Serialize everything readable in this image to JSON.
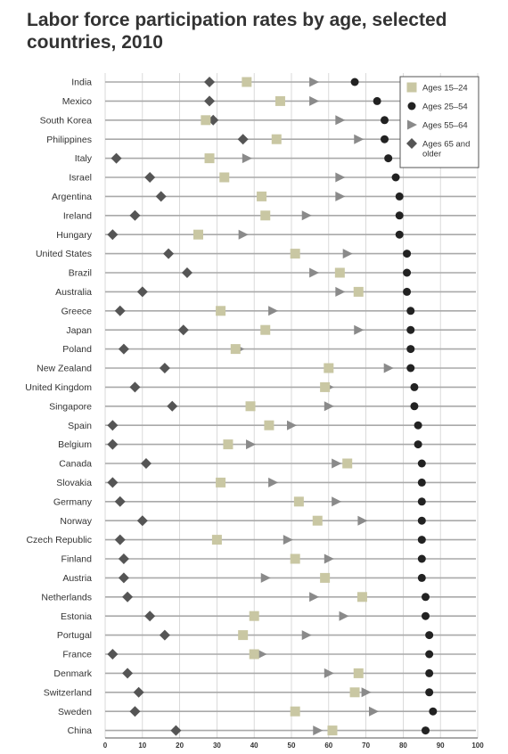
{
  "chart_data": {
    "type": "scatter",
    "title": "Labor force participation rates by age, selected countries, 2010",
    "xlabel": "",
    "ylabel": "",
    "xlim": [
      0,
      100
    ],
    "x_ticks": [
      0,
      10,
      20,
      30,
      40,
      50,
      60,
      70,
      80,
      90,
      100
    ],
    "grid": true,
    "legend_position": "top-right",
    "colors": {
      "Ages 15–24": "#c9c7a3",
      "Ages 25–54": "#222222",
      "Ages 55–64": "#8a8a8a",
      "Ages 65 and older": "#555555"
    },
    "marker_shapes": {
      "Ages 15–24": "square",
      "Ages 25–54": "circle",
      "Ages 55–64": "triangle",
      "Ages 65 and older": "diamond"
    },
    "categories": [
      "India",
      "Mexico",
      "South Korea",
      "Philippines",
      "Italy",
      "Israel",
      "Argentina",
      "Ireland",
      "Hungary",
      "United States",
      "Brazil",
      "Australia",
      "Greece",
      "Japan",
      "Poland",
      "New Zealand",
      "United Kingdom",
      "Singapore",
      "Spain",
      "Belgium",
      "Canada",
      "Slovakia",
      "Germany",
      "Norway",
      "Czech Republic",
      "Finland",
      "Austria",
      "Netherlands",
      "Estonia",
      "Portugal",
      "France",
      "Denmark",
      "Switzerland",
      "Sweden",
      "China"
    ],
    "series": [
      {
        "name": "Ages 15–24",
        "values": [
          38,
          47,
          27,
          46,
          28,
          32,
          42,
          43,
          25,
          51,
          63,
          68,
          31,
          43,
          35,
          60,
          59,
          39,
          44,
          33,
          65,
          31,
          52,
          57,
          30,
          51,
          59,
          69,
          40,
          37,
          40,
          68,
          67,
          51,
          61
        ]
      },
      {
        "name": "Ages 25–54",
        "values": [
          67,
          73,
          75,
          75,
          76,
          78,
          79,
          79,
          79,
          81,
          81,
          81,
          82,
          82,
          82,
          82,
          83,
          83,
          84,
          84,
          85,
          85,
          85,
          85,
          85,
          85,
          85,
          86,
          86,
          87,
          87,
          87,
          87,
          88,
          86
        ]
      },
      {
        "name": "Ages 55–64",
        "values": [
          56,
          56,
          63,
          68,
          38,
          63,
          63,
          54,
          37,
          65,
          56,
          63,
          45,
          68,
          36,
          76,
          60,
          60,
          50,
          39,
          62,
          45,
          62,
          69,
          49,
          60,
          43,
          56,
          64,
          54,
          42,
          60,
          70,
          72,
          57
        ]
      },
      {
        "name": "Ages 65 and older",
        "values": [
          28,
          28,
          29,
          37,
          3,
          12,
          15,
          8,
          2,
          17,
          22,
          10,
          4,
          21,
          5,
          16,
          8,
          18,
          2,
          2,
          11,
          2,
          4,
          10,
          4,
          5,
          5,
          6,
          12,
          16,
          2,
          6,
          9,
          8,
          19
        ]
      }
    ]
  }
}
